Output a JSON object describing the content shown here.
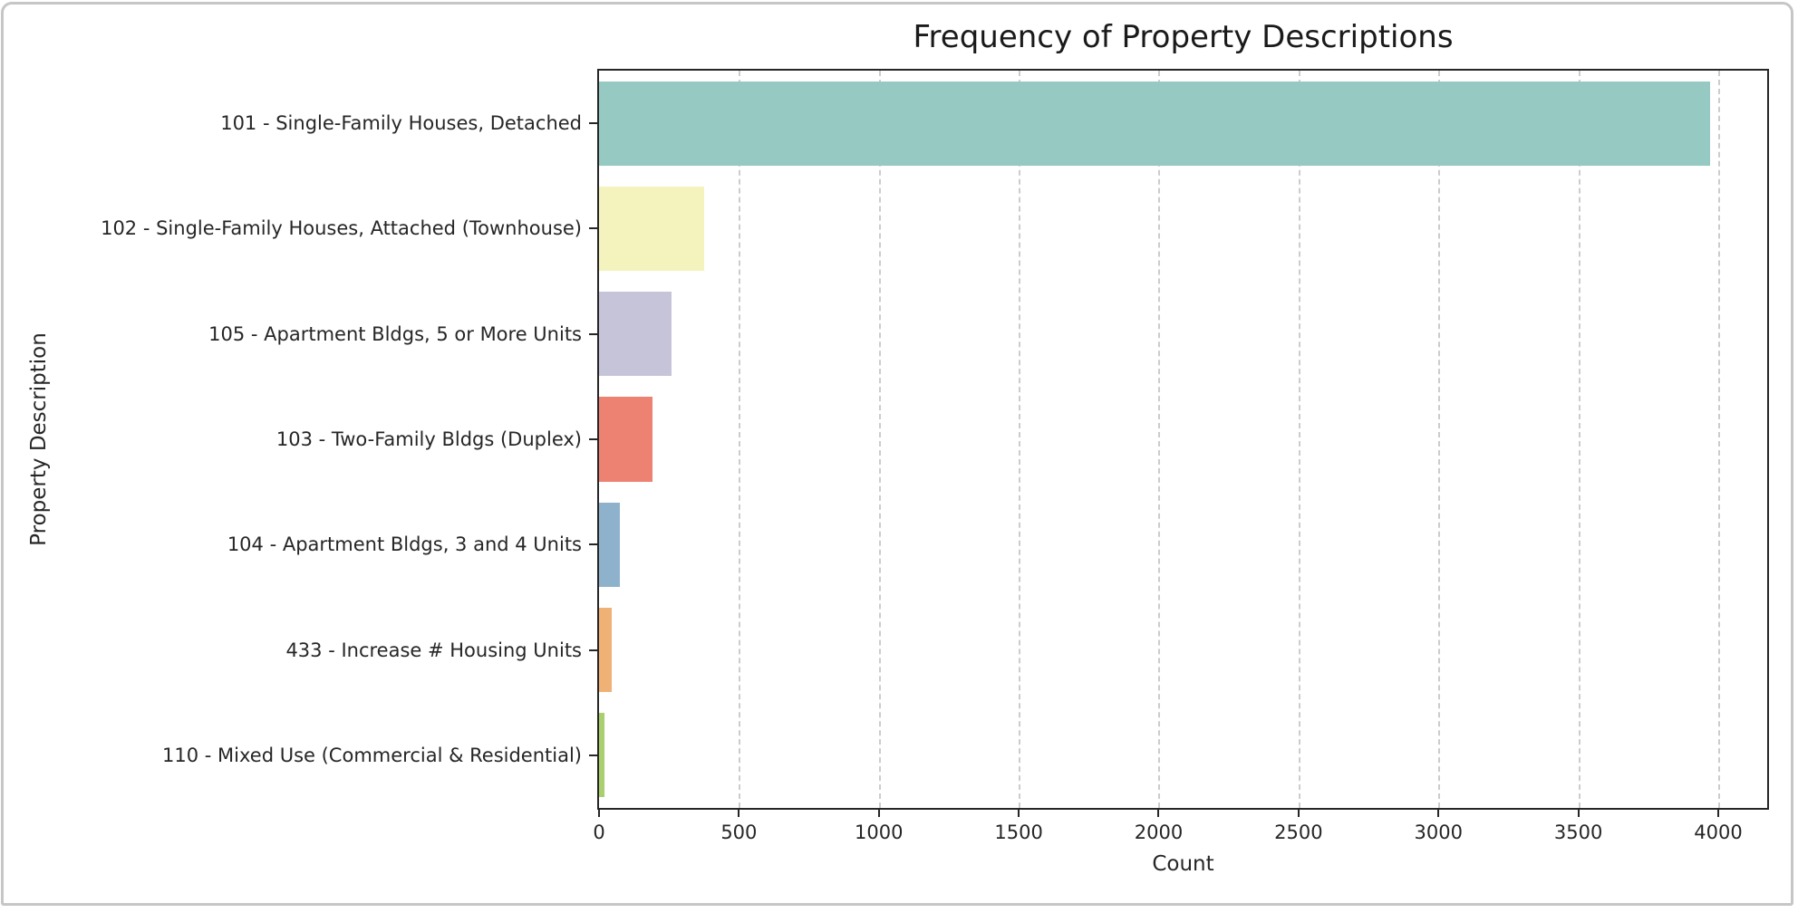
{
  "card": {
    "border_color": "#c6c6c6"
  },
  "chart_data": {
    "type": "bar",
    "orientation": "horizontal",
    "title": "Frequency of Property Descriptions",
    "xlabel": "Count",
    "ylabel": "Property Description",
    "categories": [
      "101 - Single-Family Houses, Detached",
      "102 - Single-Family Houses, Attached (Townhouse)",
      "105 - Apartment Bldgs, 5 or More Units",
      "103 - Two-Family Bldgs (Duplex)",
      "104 - Apartment Bldgs, 3 and 4 Units",
      "433 - Increase # Housing Units",
      "110 - Mixed Use (Commercial & Residential)"
    ],
    "values": [
      3970,
      375,
      258,
      192,
      75,
      45,
      18
    ],
    "bar_colors": [
      "#96c9c1",
      "#f4f3bd",
      "#c6c4d9",
      "#ed8172",
      "#8fb2cc",
      "#f0b176",
      "#a9cf6f"
    ],
    "xticks": [
      0,
      500,
      1000,
      1500,
      2000,
      2500,
      3000,
      3500,
      4000
    ],
    "xlim": [
      0,
      4175
    ],
    "bar_fraction": 0.8,
    "grid": "vertical-dashed",
    "grid_color": "#cccccc",
    "spine_color": "#262626",
    "legend": "none"
  }
}
